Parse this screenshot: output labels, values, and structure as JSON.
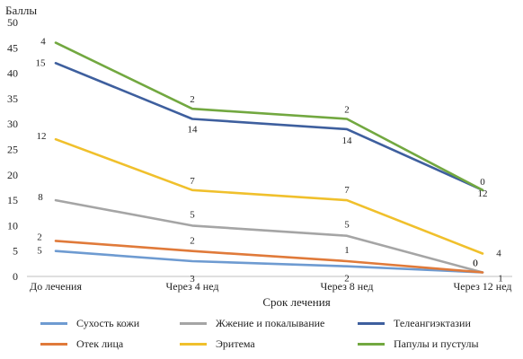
{
  "chart_data": {
    "type": "line",
    "ylabel": "Баллы",
    "xlabel": "Срок лечения",
    "categories": [
      "До лечения",
      "Через 4 нед",
      "Через 8 нед",
      "Через 12 нед"
    ],
    "ylim": [
      0,
      50
    ],
    "yticks": [
      0,
      5,
      10,
      15,
      20,
      25,
      30,
      35,
      40,
      45,
      50
    ],
    "grid": false,
    "legend_position": "bottom",
    "series": [
      {
        "name": "Сухость кожи",
        "color": "#6e9bd1",
        "values": [
          5,
          3,
          2,
          0.8
        ],
        "labels": [
          "5",
          "3",
          "2",
          "1"
        ]
      },
      {
        "name": "Жжение и покалывание",
        "color": "#a5a5a5",
        "values": [
          15,
          10,
          8,
          0.8
        ],
        "labels": [
          "8",
          "5",
          "5",
          "0"
        ]
      },
      {
        "name": "Телеангиэктазии",
        "color": "#3e5f9e",
        "values": [
          42,
          31,
          29,
          17
        ],
        "labels": [
          "15",
          "14",
          "14",
          "12"
        ]
      },
      {
        "name": "Отек лица",
        "color": "#e07a3a",
        "values": [
          7,
          5,
          3,
          0.8
        ],
        "labels": [
          "2",
          "2",
          "1",
          "0"
        ]
      },
      {
        "name": "Эритема",
        "color": "#f0c02c",
        "values": [
          27,
          17,
          15,
          4.5
        ],
        "labels": [
          "12",
          "7",
          "7",
          "4"
        ]
      },
      {
        "name": "Папулы и пустулы",
        "color": "#72a840",
        "values": [
          46,
          33,
          31,
          17
        ],
        "labels": [
          "4",
          "2",
          "2",
          "0"
        ]
      }
    ]
  }
}
